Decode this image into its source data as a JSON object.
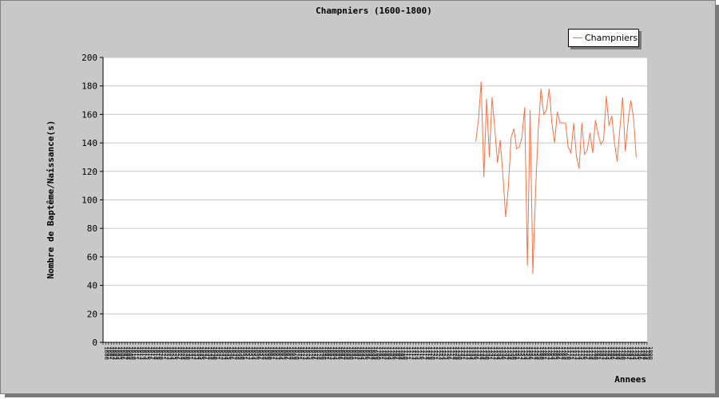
{
  "chart_data": {
    "type": "line",
    "title": "Champniers (1600-1800)",
    "xlabel": "Annees",
    "ylabel": "Nombre de Baptême/Naissance(s)",
    "ylim": [
      0,
      200
    ],
    "yticks": [
      0,
      20,
      40,
      60,
      80,
      100,
      120,
      140,
      160,
      180,
      200
    ],
    "xlim": [
      1600,
      1800
    ],
    "grid": true,
    "legend_position": "top-right",
    "series": [
      {
        "name": "Champniers",
        "color": "#f37446",
        "x_start": 1737,
        "x_step": 1,
        "values": [
          141,
          156,
          183,
          116,
          171,
          130,
          172,
          150,
          126,
          142,
          117,
          88,
          109,
          144,
          150,
          136,
          137,
          144,
          165,
          54,
          163,
          48,
          106,
          150,
          178,
          160,
          163,
          178,
          154,
          140,
          162,
          154,
          154,
          154,
          137,
          133,
          154,
          131,
          122,
          154,
          132,
          135,
          147,
          133,
          156,
          146,
          139,
          142,
          173,
          152,
          159,
          140,
          127,
          150,
          172,
          134,
          155,
          170,
          158,
          130
        ]
      }
    ]
  }
}
